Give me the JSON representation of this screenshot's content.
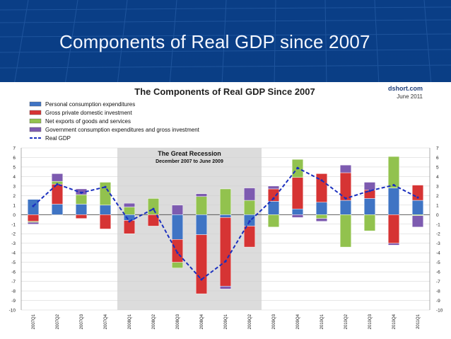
{
  "slide": {
    "title": "Components of Real GDP since 2007"
  },
  "chart_data": {
    "type": "bar",
    "stacked": true,
    "title": "The Components of Real GDP Since 2007",
    "source": "dshort.com",
    "date": "June 2011",
    "annotation": {
      "title": "The Great Recession",
      "subtitle": "December 2007 to June 2009"
    },
    "categories": [
      "2007 Q1",
      "2007 Q2",
      "2007 Q3",
      "2007 Q4",
      "2008 Q1",
      "2008 Q2",
      "2008 Q3",
      "2008 Q4",
      "2009 Q1",
      "2009 Q2",
      "2009 Q3",
      "2009 Q4",
      "2010 Q1",
      "2010 Q2",
      "2010 Q3",
      "2010 Q4",
      "2011 Q1"
    ],
    "recession": {
      "start": "2008 Q1",
      "end": "2009 Q2"
    },
    "ylim": [
      -10,
      7
    ],
    "yticks": [
      7,
      6,
      5,
      4,
      3,
      2,
      1,
      0,
      -1,
      -2,
      -3,
      -4,
      -5,
      -6,
      -7,
      -8,
      -9,
      -10
    ],
    "series": [
      {
        "name": "Personal consumption expenditures",
        "color": "#3f74c4",
        "values": [
          1.6,
          1.1,
          1.1,
          1.0,
          -0.6,
          0.0,
          -2.6,
          -2.1,
          -0.3,
          -1.2,
          1.4,
          0.6,
          1.3,
          1.5,
          1.7,
          2.8,
          1.5
        ]
      },
      {
        "name": "Gross private domestic investment",
        "color": "#d63434",
        "values": [
          -0.7,
          2.1,
          -0.4,
          -1.5,
          -1.4,
          -1.2,
          -2.4,
          -6.2,
          -7.2,
          -2.2,
          1.3,
          3.3,
          3.0,
          2.9,
          0.9,
          -3.0,
          1.6
        ]
      },
      {
        "name": "Net exports of goods and services",
        "color": "#92c24e",
        "values": [
          -0.1,
          0.3,
          1.0,
          2.4,
          0.8,
          1.7,
          -0.6,
          1.9,
          2.7,
          1.5,
          -1.3,
          1.9,
          -0.4,
          -3.4,
          -1.7,
          3.3,
          -0.1
        ]
      },
      {
        "name": "Government consumption expenditures and gross investment",
        "color": "#7d5bb0",
        "values": [
          -0.2,
          0.8,
          0.6,
          0.0,
          0.4,
          0.0,
          1.0,
          0.3,
          -0.3,
          1.3,
          0.3,
          -0.3,
          -0.3,
          0.8,
          0.8,
          -0.2,
          -1.2
        ]
      }
    ],
    "line": {
      "name": "Real GDP",
      "color": "#1a2fbf",
      "values": [
        0.9,
        3.2,
        2.3,
        2.9,
        -0.7,
        0.6,
        -4.0,
        -6.8,
        -4.9,
        -0.7,
        1.7,
        4.9,
        3.6,
        1.7,
        2.5,
        3.1,
        1.8
      ]
    }
  }
}
